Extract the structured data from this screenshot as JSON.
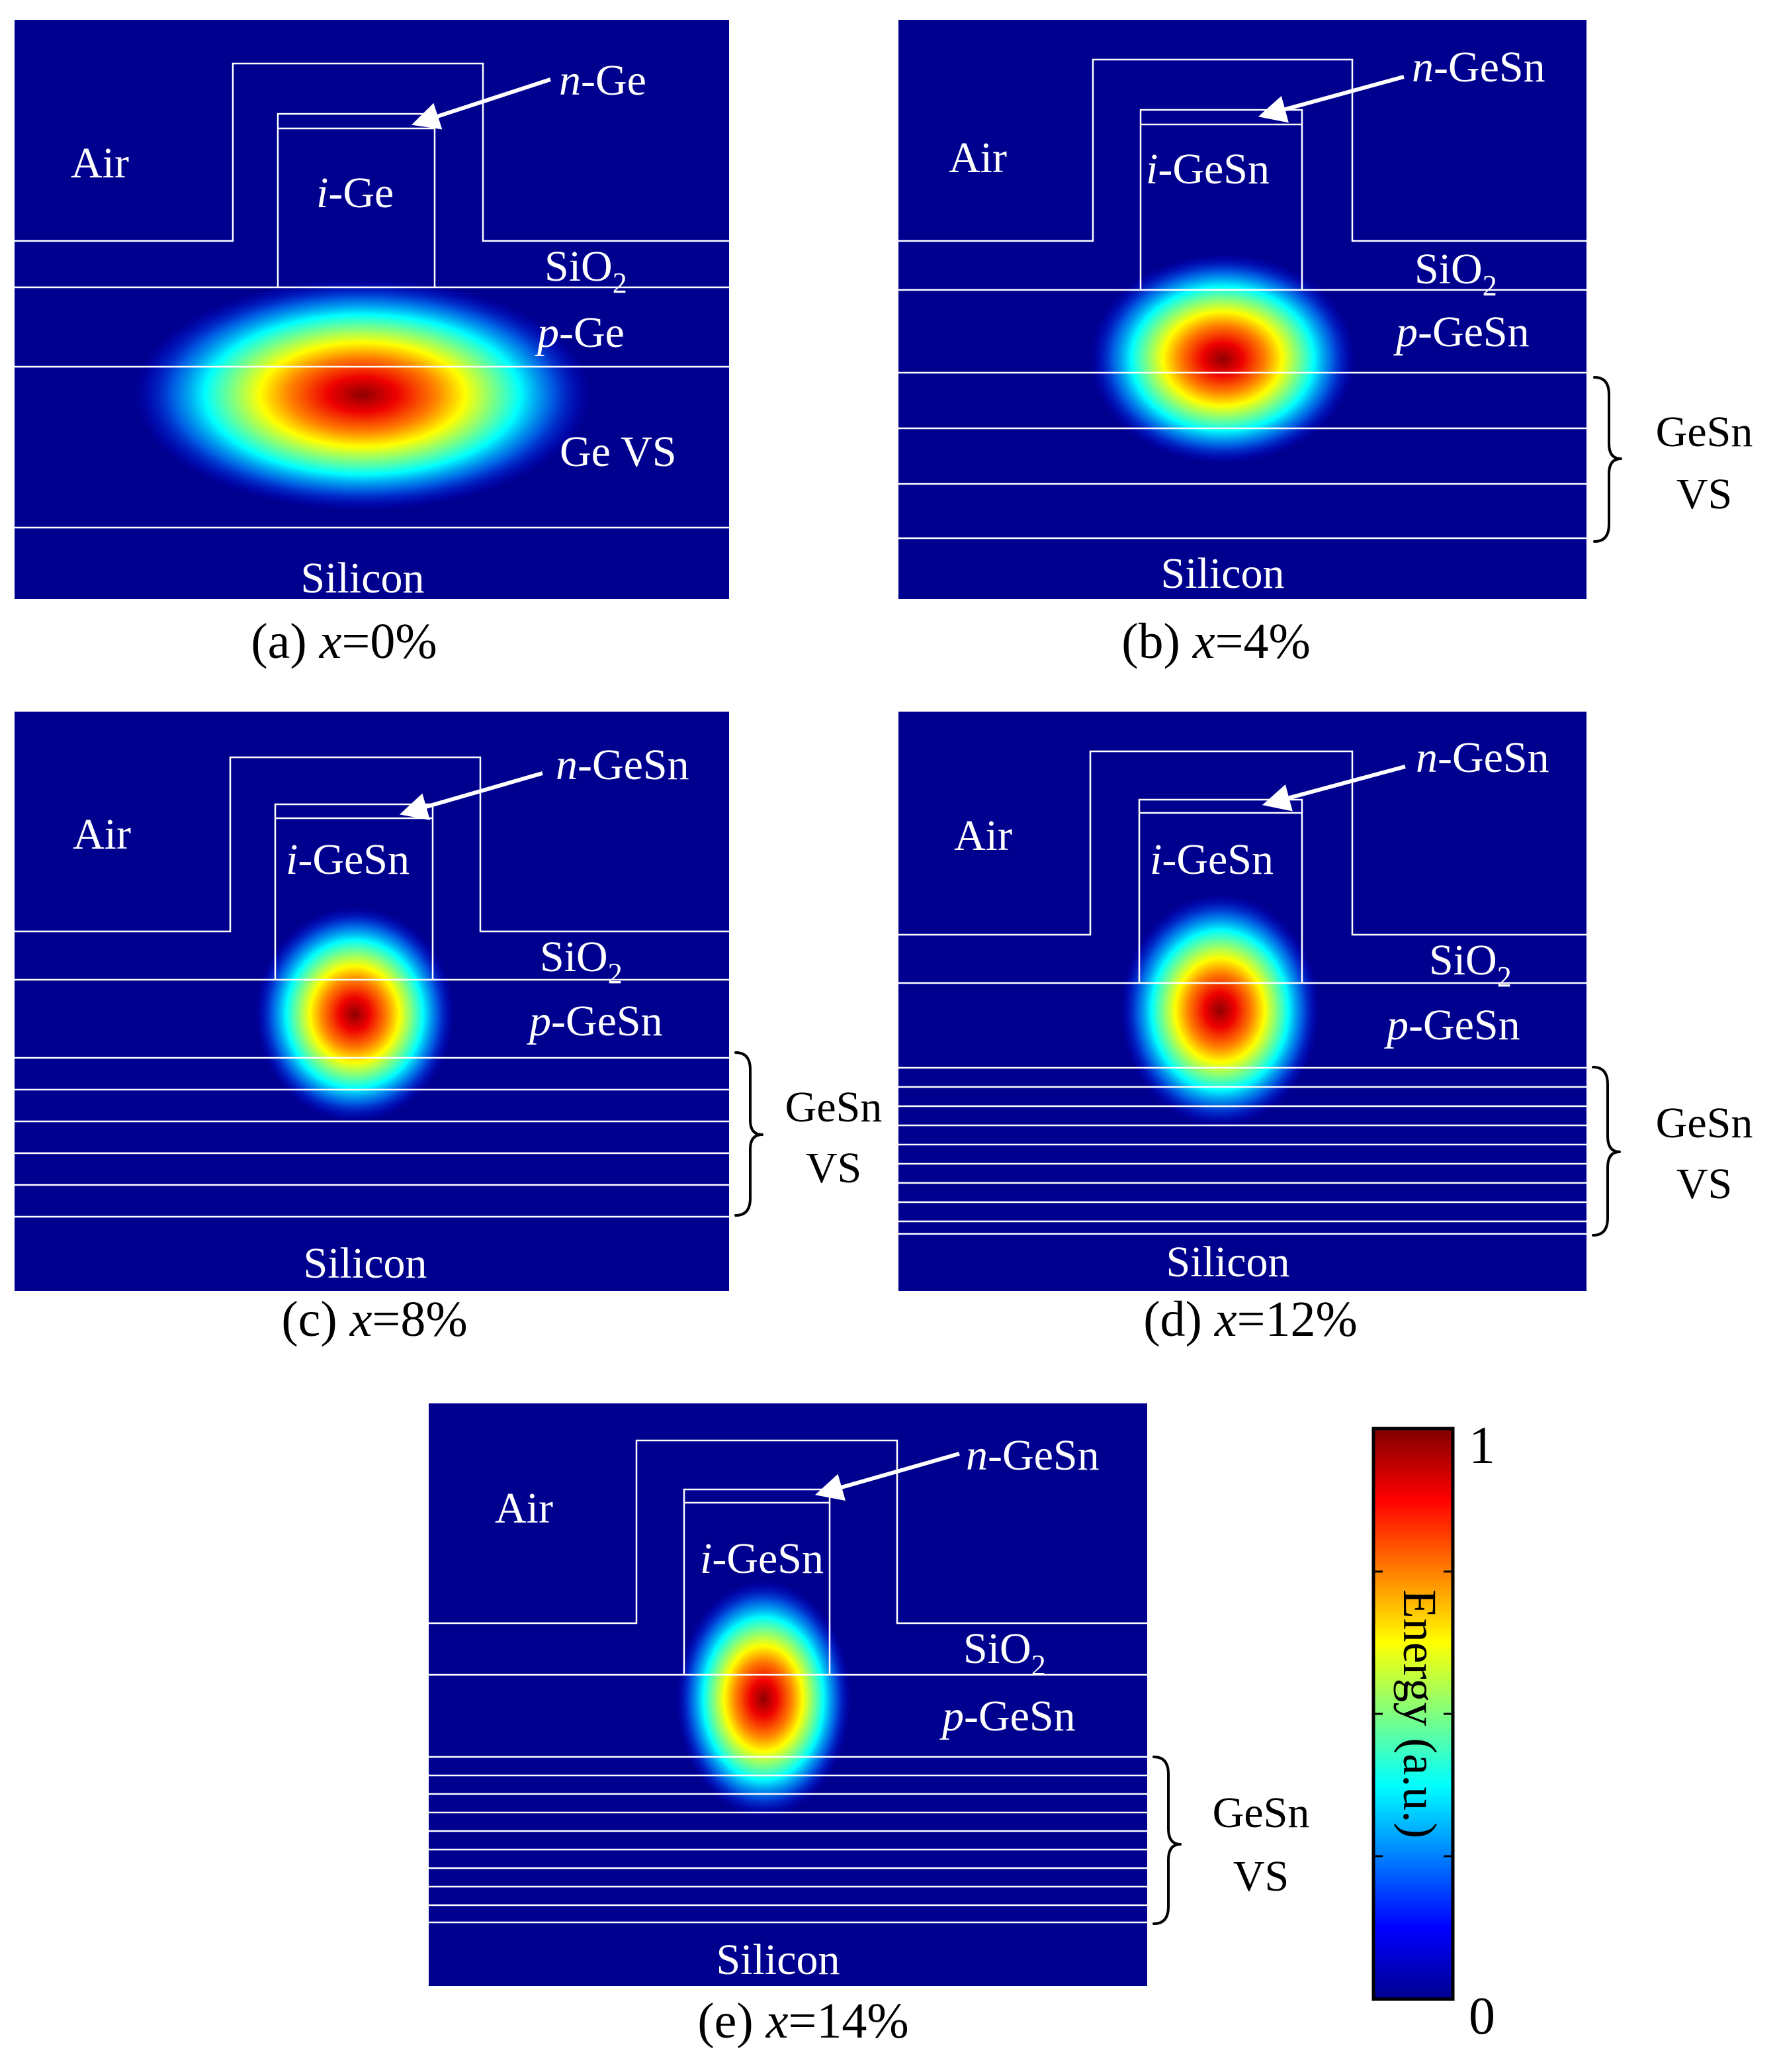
{
  "panels": [
    {
      "id": "a",
      "caption_prefix": "(a) ",
      "caption_var": "x",
      "caption_value": "=0%",
      "labels": {
        "air": "Air",
        "n_prefix": "n",
        "n_suffix": "-Ge",
        "i_prefix": "i",
        "i_suffix": "-Ge",
        "sio2": "SiO",
        "sio2_sub": "2",
        "p_prefix": "p",
        "p_suffix": "-Ge",
        "vs": "Ge VS",
        "silicon": "Silicon"
      },
      "mode_fraction": 1.0
    },
    {
      "id": "b",
      "caption_prefix": "(b) ",
      "caption_var": "x",
      "caption_value": "=4%",
      "labels": {
        "air": "Air",
        "n_prefix": "n",
        "n_suffix": "-GeSn",
        "i_prefix": "i",
        "i_suffix": "-GeSn",
        "sio2": "SiO",
        "sio2_sub": "2",
        "p_prefix": "p",
        "p_suffix": "-GeSn",
        "vs_line1": "GeSn",
        "vs_line2": "VS",
        "silicon": "Silicon"
      },
      "mode_fraction": 1.0
    },
    {
      "id": "c",
      "caption_prefix": "(c) ",
      "caption_var": "x",
      "caption_value": "=8%",
      "labels": {
        "air": "Air",
        "n_prefix": "n",
        "n_suffix": "-GeSn",
        "i_prefix": "i",
        "i_suffix": "-GeSn",
        "sio2": "SiO",
        "sio2_sub": "2",
        "p_prefix": "p",
        "p_suffix": "-GeSn",
        "vs_line1": "GeSn",
        "vs_line2": "VS",
        "silicon": "Silicon"
      },
      "mode_fraction": 1.0
    },
    {
      "id": "d",
      "caption_prefix": "(d) ",
      "caption_var": "x",
      "caption_value": "=12%",
      "labels": {
        "air": "Air",
        "n_prefix": "n",
        "n_suffix": "-GeSn",
        "i_prefix": "i",
        "i_suffix": "-GeSn",
        "sio2": "SiO",
        "sio2_sub": "2",
        "p_prefix": "p",
        "p_suffix": "-GeSn",
        "vs_line1": "GeSn",
        "vs_line2": "VS",
        "silicon": "Silicon"
      },
      "mode_fraction": 1.0
    },
    {
      "id": "e",
      "caption_prefix": "(e) ",
      "caption_var": "x",
      "caption_value": "=14%",
      "labels": {
        "air": "Air",
        "n_prefix": "n",
        "n_suffix": "-GeSn",
        "i_prefix": "i",
        "i_suffix": "-GeSn",
        "sio2": "SiO",
        "sio2_sub": "2",
        "p_prefix": "p",
        "p_suffix": "-GeSn",
        "vs_line1": "GeSn",
        "vs_line2": "VS",
        "silicon": "Silicon"
      },
      "mode_fraction": 1.0
    }
  ],
  "colorbar": {
    "label": "Energy (a.u.)",
    "max_label": "1",
    "min_label": "0",
    "range": [
      0,
      1
    ],
    "colormap": "jet"
  },
  "colors": {
    "background": "#00008f",
    "boundary": "#ffffff",
    "mode_peak": "#8f0000"
  }
}
